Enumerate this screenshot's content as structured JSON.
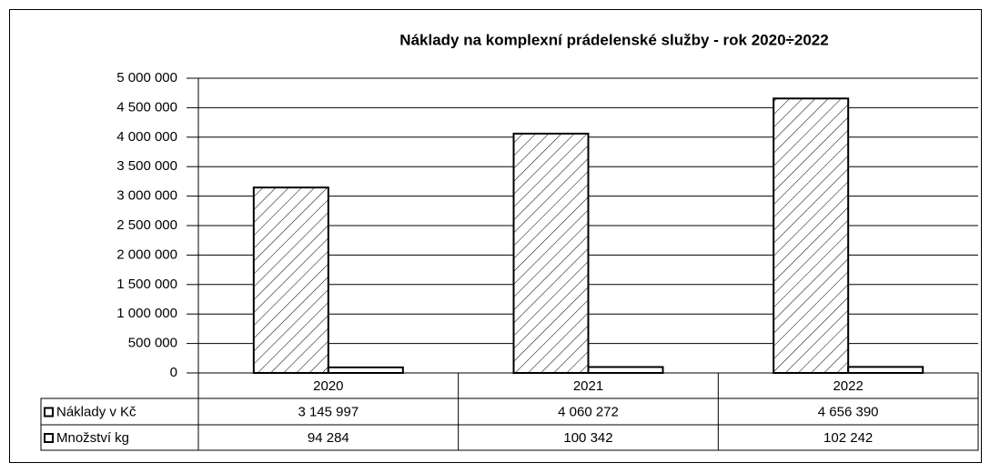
{
  "chart_data": {
    "type": "bar",
    "title": "Náklady na komplexní prádelenské služby - rok 2020÷2022",
    "categories": [
      "2020",
      "2021",
      "2022"
    ],
    "series": [
      {
        "name": "Náklady v Kč",
        "color": "#ffffff",
        "hatch": true,
        "values": [
          3145997,
          4060272,
          4656390
        ],
        "value_labels": [
          "3 145 997",
          "4 060 272",
          "4 656 390"
        ]
      },
      {
        "name": "Množství kg",
        "color": "#ffffff",
        "hatch": false,
        "values": [
          94284,
          100342,
          102242
        ],
        "value_labels": [
          "94 284",
          "100 342",
          "102 242"
        ]
      }
    ],
    "ylim": [
      0,
      5000000
    ],
    "yticks": [
      0,
      {
        "value": 500000,
        "label": "500 000"
      },
      {
        "value": 1000000,
        "label": "1 000 000"
      },
      {
        "value": 1500000,
        "label": "1 500 000"
      },
      {
        "value": 2000000,
        "label": "2 000 000"
      },
      {
        "value": 2500000,
        "label": "2 500 000"
      },
      {
        "value": 3000000,
        "label": "3 000 000"
      },
      {
        "value": 3500000,
        "label": "3 500 000"
      },
      {
        "value": 4000000,
        "label": "4 000 000"
      },
      {
        "value": 4500000,
        "label": "4 500 000"
      },
      {
        "value": 5000000,
        "label": "5 000 000"
      }
    ],
    "grid": true
  }
}
